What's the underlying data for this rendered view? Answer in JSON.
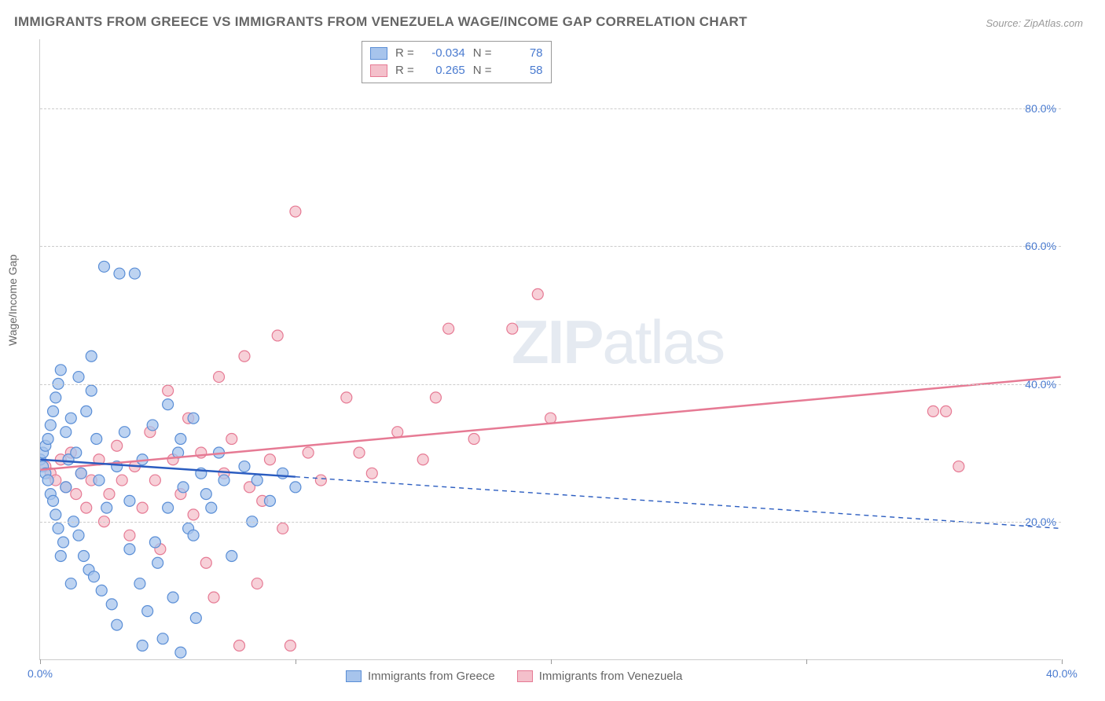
{
  "title": "IMMIGRANTS FROM GREECE VS IMMIGRANTS FROM VENEZUELA WAGE/INCOME GAP CORRELATION CHART",
  "source": "Source: ZipAtlas.com",
  "ylabel": "Wage/Income Gap",
  "watermark_bold": "ZIP",
  "watermark_light": "atlas",
  "chart": {
    "type": "scatter",
    "xlim": [
      0,
      40
    ],
    "ylim": [
      0,
      90
    ],
    "ygrid_values": [
      20,
      40,
      60,
      80
    ],
    "ygrid_labels": [
      "20.0%",
      "40.0%",
      "60.0%",
      "80.0%"
    ],
    "xtick_values": [
      0,
      10,
      20,
      30,
      40
    ],
    "xtick_labels": [
      "0.0%",
      "",
      "",
      "",
      "40.0%"
    ],
    "background_color": "#ffffff",
    "grid_color": "#cccccc",
    "axis_label_color": "#4a7bd0",
    "marker_radius": 7,
    "marker_stroke_width": 1.2,
    "line_width_solid": 2.5,
    "line_width_dashed": 1.4,
    "dash_pattern": "6 5"
  },
  "series": {
    "greece": {
      "label": "Immigrants from Greece",
      "fill": "#a7c4ec",
      "stroke": "#5a8ed6",
      "r_value": "-0.034",
      "n_value": "78",
      "trend": {
        "x1": 0,
        "y1": 29,
        "x2": 40,
        "y2": 19,
        "solid_until_x": 10
      },
      "points": [
        [
          0.0,
          29
        ],
        [
          0.1,
          28
        ],
        [
          0.1,
          30
        ],
        [
          0.2,
          27
        ],
        [
          0.2,
          31
        ],
        [
          0.3,
          26
        ],
        [
          0.3,
          32
        ],
        [
          0.4,
          24
        ],
        [
          0.4,
          34
        ],
        [
          0.5,
          36
        ],
        [
          0.5,
          23
        ],
        [
          0.6,
          38
        ],
        [
          0.6,
          21
        ],
        [
          0.7,
          40
        ],
        [
          0.7,
          19
        ],
        [
          0.8,
          42
        ],
        [
          0.9,
          17
        ],
        [
          1.0,
          33
        ],
        [
          1.0,
          25
        ],
        [
          1.1,
          29
        ],
        [
          1.2,
          35
        ],
        [
          1.3,
          20
        ],
        [
          1.4,
          30
        ],
        [
          1.5,
          18
        ],
        [
          1.6,
          27
        ],
        [
          1.7,
          15
        ],
        [
          1.8,
          36
        ],
        [
          1.9,
          13
        ],
        [
          2.0,
          39
        ],
        [
          2.1,
          12
        ],
        [
          2.2,
          32
        ],
        [
          2.3,
          26
        ],
        [
          2.4,
          10
        ],
        [
          2.5,
          57
        ],
        [
          2.6,
          22
        ],
        [
          2.8,
          8
        ],
        [
          3.0,
          28
        ],
        [
          3.1,
          56
        ],
        [
          3.3,
          33
        ],
        [
          3.5,
          16
        ],
        [
          3.7,
          56
        ],
        [
          3.9,
          11
        ],
        [
          4.0,
          29
        ],
        [
          4.2,
          7
        ],
        [
          4.4,
          34
        ],
        [
          4.6,
          14
        ],
        [
          4.8,
          3
        ],
        [
          5.0,
          37
        ],
        [
          5.0,
          22
        ],
        [
          5.2,
          9
        ],
        [
          5.4,
          30
        ],
        [
          5.5,
          1
        ],
        [
          5.6,
          25
        ],
        [
          5.8,
          19
        ],
        [
          6.0,
          35
        ],
        [
          6.1,
          6
        ],
        [
          6.3,
          27
        ],
        [
          6.5,
          24
        ],
        [
          6.7,
          22
        ],
        [
          7.0,
          30
        ],
        [
          7.2,
          26
        ],
        [
          7.5,
          15
        ],
        [
          8.0,
          28
        ],
        [
          8.3,
          20
        ],
        [
          8.5,
          26
        ],
        [
          9.0,
          23
        ],
        [
          9.5,
          27
        ],
        [
          10.0,
          25
        ],
        [
          3.0,
          5
        ],
        [
          4.0,
          2
        ],
        [
          1.5,
          41
        ],
        [
          2.0,
          44
        ],
        [
          0.8,
          15
        ],
        [
          1.2,
          11
        ],
        [
          5.5,
          32
        ],
        [
          6.0,
          18
        ],
        [
          3.5,
          23
        ],
        [
          4.5,
          17
        ]
      ]
    },
    "venezuela": {
      "label": "Immigrants from Venezuela",
      "fill": "#f4c0cb",
      "stroke": "#e67a94",
      "r_value": "0.265",
      "n_value": "58",
      "trend": {
        "x1": 0,
        "y1": 27.5,
        "x2": 40,
        "y2": 41
      },
      "points": [
        [
          0.2,
          28
        ],
        [
          0.4,
          27
        ],
        [
          0.6,
          26
        ],
        [
          0.8,
          29
        ],
        [
          1.0,
          25
        ],
        [
          1.2,
          30
        ],
        [
          1.4,
          24
        ],
        [
          1.6,
          27
        ],
        [
          1.8,
          22
        ],
        [
          2.0,
          26
        ],
        [
          2.3,
          29
        ],
        [
          2.5,
          20
        ],
        [
          2.7,
          24
        ],
        [
          3.0,
          31
        ],
        [
          3.2,
          26
        ],
        [
          3.5,
          18
        ],
        [
          3.7,
          28
        ],
        [
          4.0,
          22
        ],
        [
          4.3,
          33
        ],
        [
          4.5,
          26
        ],
        [
          5.0,
          39
        ],
        [
          5.2,
          29
        ],
        [
          5.5,
          24
        ],
        [
          5.8,
          35
        ],
        [
          6.0,
          21
        ],
        [
          6.3,
          30
        ],
        [
          6.5,
          14
        ],
        [
          7.0,
          41
        ],
        [
          7.2,
          27
        ],
        [
          7.5,
          32
        ],
        [
          8.0,
          44
        ],
        [
          8.2,
          25
        ],
        [
          8.5,
          11
        ],
        [
          8.7,
          23
        ],
        [
          9.0,
          29
        ],
        [
          9.3,
          47
        ],
        [
          9.5,
          19
        ],
        [
          9.8,
          2
        ],
        [
          10.0,
          65
        ],
        [
          10.5,
          30
        ],
        [
          11.0,
          26
        ],
        [
          12.0,
          38
        ],
        [
          12.5,
          30
        ],
        [
          13.0,
          27
        ],
        [
          14.0,
          33
        ],
        [
          15.0,
          29
        ],
        [
          15.5,
          38
        ],
        [
          16.0,
          48
        ],
        [
          17.0,
          32
        ],
        [
          18.5,
          48
        ],
        [
          19.5,
          53
        ],
        [
          20.0,
          35
        ],
        [
          35.0,
          36
        ],
        [
          35.5,
          36
        ],
        [
          36.0,
          28
        ],
        [
          7.8,
          2
        ],
        [
          6.8,
          9
        ],
        [
          4.7,
          16
        ]
      ]
    }
  },
  "legend_top": {
    "r_label": "R =",
    "n_label": "N ="
  }
}
